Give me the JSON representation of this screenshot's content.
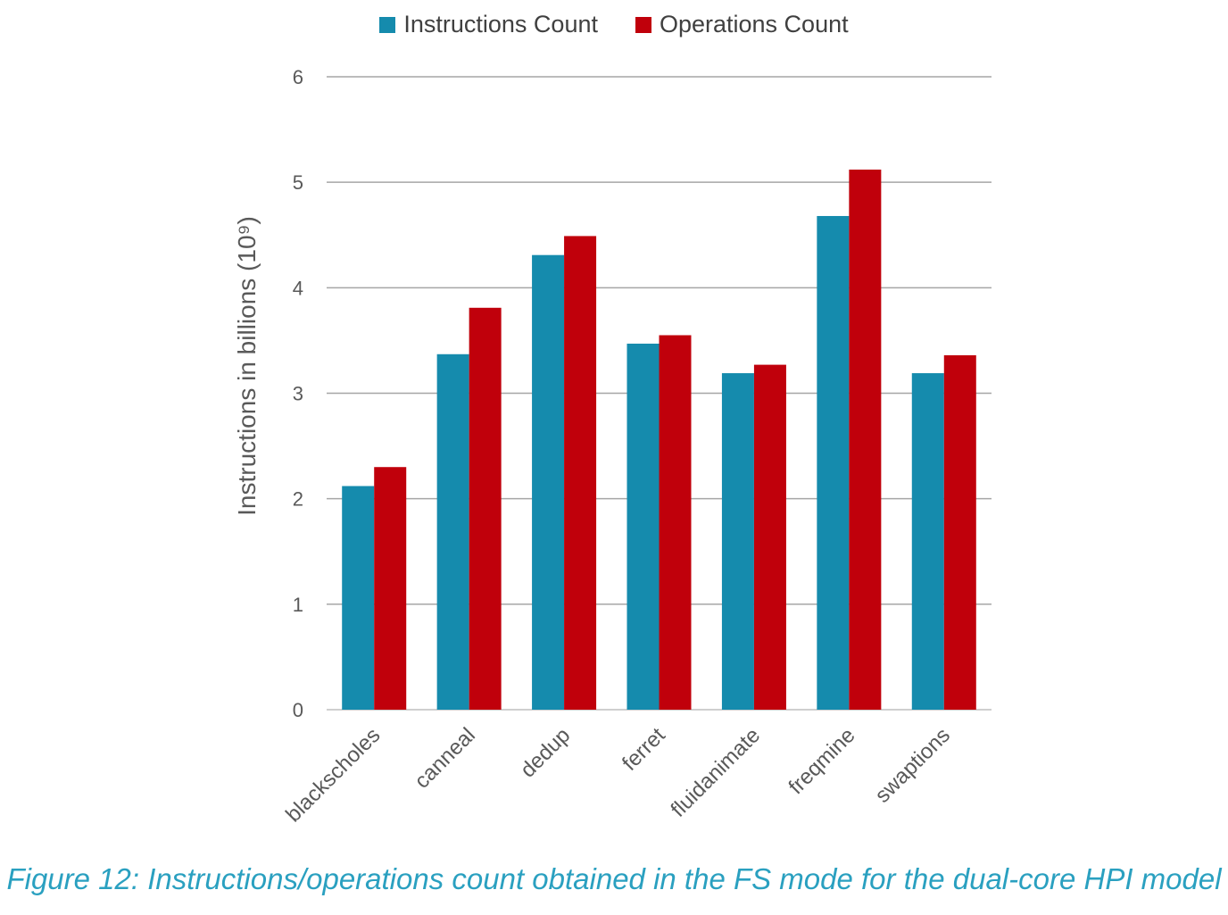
{
  "chart_data": {
    "type": "bar",
    "categories": [
      "blackscholes",
      "canneal",
      "dedup",
      "ferret",
      "fluidanimate",
      "freqmine",
      "swaptions"
    ],
    "series": [
      {
        "name": "Instructions Count",
        "color": "#158bad",
        "values": [
          2.12,
          3.37,
          4.31,
          3.47,
          3.19,
          4.68,
          3.19
        ]
      },
      {
        "name": "Operations Count",
        "color": "#c0000b",
        "values": [
          2.3,
          3.81,
          4.49,
          3.55,
          3.27,
          5.12,
          3.36
        ]
      }
    ],
    "ylabel": "Instructions in billions (10⁹)",
    "ylim": [
      0,
      6
    ],
    "yticks": [
      0,
      1,
      2,
      3,
      4,
      5,
      6
    ],
    "grid": true,
    "legend_position": "top"
  },
  "caption": "Figure 12: Instructions/operations count obtained in the FS mode for the dual-core HPI model"
}
